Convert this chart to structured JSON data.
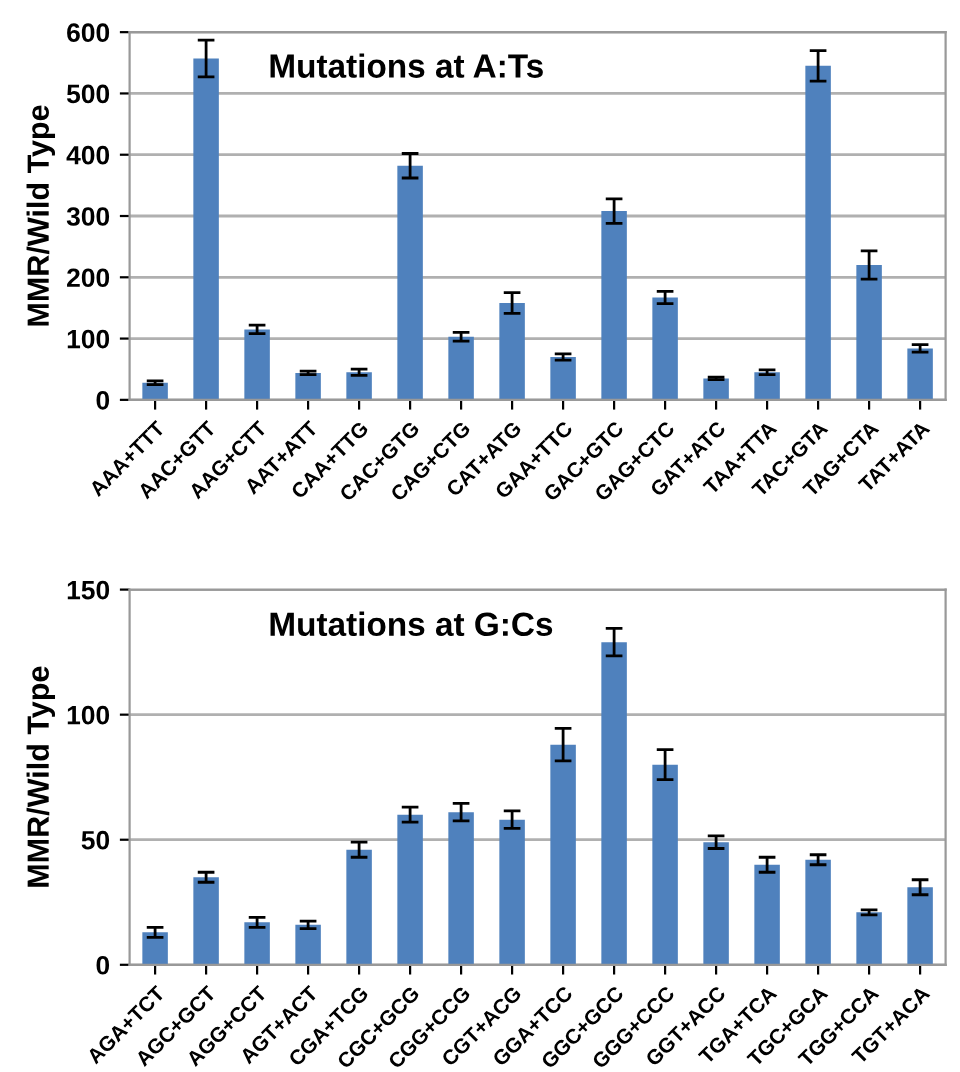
{
  "chart_data": [
    {
      "type": "bar",
      "ylabel": "MMR/Wild Type",
      "annotations": [
        "Mutations at A:Ts"
      ],
      "categories": [
        "AAA+TTT",
        "AAC+GTT",
        "AAG+CTT",
        "AAT+ATT",
        "CAA+TTG",
        "CAC+GTG",
        "CAG+CTG",
        "CAT+ATG",
        "GAA+TTC",
        "GAC+GTC",
        "GAG+CTC",
        "GAT+ATC",
        "TAA+TTA",
        "TAC+GTA",
        "TAG+CTA",
        "TAT+ATA"
      ],
      "series": [
        {
          "color": "#4f81bd",
          "values": [
            28,
            557,
            115,
            44,
            45,
            382,
            103,
            158,
            70,
            308,
            167,
            35,
            45,
            545,
            220,
            84
          ],
          "errors": [
            3,
            30,
            7,
            3,
            5,
            20,
            7,
            17,
            5,
            20,
            10,
            2,
            4,
            25,
            23,
            6
          ]
        }
      ],
      "ylim": [
        0,
        600
      ],
      "yticks": [
        0,
        100,
        200,
        300,
        400,
        500,
        600
      ],
      "grid": "y"
    },
    {
      "type": "bar",
      "ylabel": "MMR/Wild Type",
      "annotations": [
        "Mutations at G:Cs"
      ],
      "categories": [
        "AGA+TCT",
        "AGC+GCT",
        "AGG+CCT",
        "AGT+ACT",
        "CGA+TCG",
        "CGC+GCG",
        "CGG+CCG",
        "CGT+ACG",
        "GGA+TCC",
        "GGC+GCC",
        "GGG+CCC",
        "GGT+ACC",
        "TGA+TCA",
        "TGC+GCA",
        "TGG+CCA",
        "TGT+ACA"
      ],
      "series": [
        {
          "color": "#4f81bd",
          "values": [
            13,
            35,
            17,
            16,
            46,
            60,
            61,
            58,
            88,
            129,
            80,
            49,
            40,
            42,
            21,
            31
          ],
          "errors": [
            2,
            2,
            2,
            1.5,
            3,
            3,
            3.5,
            3.5,
            6.5,
            5.5,
            6,
            2.5,
            3,
            2,
            1,
            3
          ]
        }
      ],
      "ylim": [
        0,
        150
      ],
      "yticks": [
        0,
        50,
        100,
        150
      ],
      "grid": "y"
    }
  ]
}
